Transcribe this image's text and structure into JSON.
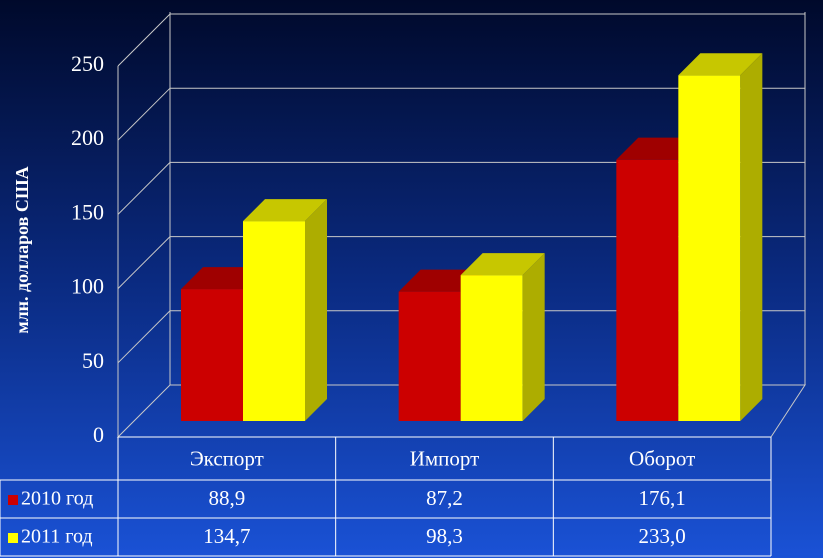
{
  "chart_data": {
    "type": "bar3d",
    "ylabel": "млн. долларов США",
    "categories": [
      "Экспорт",
      "Импорт",
      "Оборот"
    ],
    "series": [
      {
        "name": "2010 год",
        "color": "#cc0000",
        "values": [
          88.9,
          87.2,
          176.1
        ],
        "value_labels": [
          "88,9",
          "87,2",
          "176,1"
        ]
      },
      {
        "name": "2011 год",
        "color": "#ffff00",
        "values": [
          134.7,
          98.3,
          233.0
        ],
        "value_labels": [
          "134,7",
          "98,3",
          "233,0"
        ]
      }
    ],
    "ylim": [
      0,
      250
    ],
    "yticks": [
      0,
      50,
      100,
      150,
      200,
      250
    ],
    "grid": true,
    "data_table": true
  }
}
